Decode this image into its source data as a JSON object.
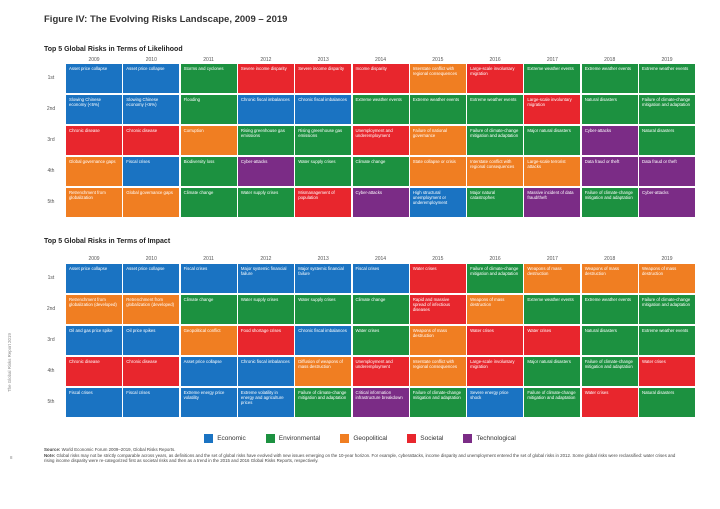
{
  "figure": {
    "label": "Figure IV:",
    "title": "The Evolving Risks Landscape, 2009 – 2019"
  },
  "years": [
    "2009",
    "2010",
    "2011",
    "2012",
    "2013",
    "2014",
    "2015",
    "2016",
    "2017",
    "2018",
    "2019"
  ],
  "ranks": [
    "1st",
    "2nd",
    "3rd",
    "4th",
    "5th"
  ],
  "likelihood": {
    "title": "Top 5 Global Risks in Terms of Likelihood",
    "grid": [
      [
        {
          "label": "Asset price collapse",
          "cat": "economic"
        },
        {
          "label": "Slowing Chinese economy (<6%)",
          "cat": "economic"
        },
        {
          "label": "Chronic disease",
          "cat": "societal"
        },
        {
          "label": "Global governance gaps",
          "cat": "geopolitical"
        },
        {
          "label": "Retrenchment from globalization",
          "cat": "geopolitical"
        }
      ],
      [
        {
          "label": "Asset price collapse",
          "cat": "economic"
        },
        {
          "label": "Slowing Chinese economy (<6%)",
          "cat": "economic"
        },
        {
          "label": "Chronic disease",
          "cat": "societal"
        },
        {
          "label": "Fiscal crises",
          "cat": "economic"
        },
        {
          "label": "Global governance gaps",
          "cat": "geopolitical"
        }
      ],
      [
        {
          "label": "Storms and cyclones",
          "cat": "environmental"
        },
        {
          "label": "Flooding",
          "cat": "environmental"
        },
        {
          "label": "Corruption",
          "cat": "geopolitical"
        },
        {
          "label": "Biodiversity loss",
          "cat": "environmental"
        },
        {
          "label": "Climate change",
          "cat": "environmental"
        }
      ],
      [
        {
          "label": "Severe income disparity",
          "cat": "societal"
        },
        {
          "label": "Chronic fiscal imbalances",
          "cat": "economic"
        },
        {
          "label": "Rising greenhouse gas emissions",
          "cat": "environmental"
        },
        {
          "label": "Cyber-attacks",
          "cat": "technological"
        },
        {
          "label": "Water supply crises",
          "cat": "environmental"
        }
      ],
      [
        {
          "label": "Severe income disparity",
          "cat": "societal"
        },
        {
          "label": "Chronic fiscal imbalances",
          "cat": "economic"
        },
        {
          "label": "Rising greenhouse gas emissions",
          "cat": "environmental"
        },
        {
          "label": "Water supply crises",
          "cat": "environmental"
        },
        {
          "label": "Mismanagement of population",
          "cat": "societal"
        }
      ],
      [
        {
          "label": "Income disparity",
          "cat": "societal"
        },
        {
          "label": "Extreme weather events",
          "cat": "environmental"
        },
        {
          "label": "Unemployment and underemployment",
          "cat": "societal"
        },
        {
          "label": "Climate change",
          "cat": "environmental"
        },
        {
          "label": "Cyber-attacks",
          "cat": "technological"
        }
      ],
      [
        {
          "label": "Interstate conflict with regional consequences",
          "cat": "geopolitical"
        },
        {
          "label": "Extreme weather events",
          "cat": "environmental"
        },
        {
          "label": "Failure of national governance",
          "cat": "geopolitical"
        },
        {
          "label": "State collapse or crisis",
          "cat": "geopolitical"
        },
        {
          "label": "High structural unemployment or underemployment",
          "cat": "economic"
        }
      ],
      [
        {
          "label": "Large-scale involuntary migration",
          "cat": "societal"
        },
        {
          "label": "Extreme weather events",
          "cat": "environmental"
        },
        {
          "label": "Failure of climate-change mitigation and adaptation",
          "cat": "environmental"
        },
        {
          "label": "Interstate conflict with regional consequences",
          "cat": "geopolitical"
        },
        {
          "label": "Major natural catastrophes",
          "cat": "environmental"
        }
      ],
      [
        {
          "label": "Extreme weather events",
          "cat": "environmental"
        },
        {
          "label": "Large-scale involuntary migration",
          "cat": "societal"
        },
        {
          "label": "Major natural disasters",
          "cat": "environmental"
        },
        {
          "label": "Large-scale terrorist attacks",
          "cat": "geopolitical"
        },
        {
          "label": "Massive incident of data fraud/theft",
          "cat": "technological"
        }
      ],
      [
        {
          "label": "Extreme weather events",
          "cat": "environmental"
        },
        {
          "label": "Natural disasters",
          "cat": "environmental"
        },
        {
          "label": "Cyber-attacks",
          "cat": "technological"
        },
        {
          "label": "Data fraud or theft",
          "cat": "technological"
        },
        {
          "label": "Failure of climate-change mitigation and adaptation",
          "cat": "environmental"
        }
      ],
      [
        {
          "label": "Extreme weather events",
          "cat": "environmental"
        },
        {
          "label": "Failure of climate-change mitigation and adaptation",
          "cat": "environmental"
        },
        {
          "label": "Natural disasters",
          "cat": "environmental"
        },
        {
          "label": "Data fraud or theft",
          "cat": "technological"
        },
        {
          "label": "Cyber-attacks",
          "cat": "technological"
        }
      ]
    ]
  },
  "impact": {
    "title": "Top 5 Global Risks in Terms of Impact",
    "grid": [
      [
        {
          "label": "Asset price collapse",
          "cat": "economic"
        },
        {
          "label": "Retrenchment from globalization (developed)",
          "cat": "geopolitical"
        },
        {
          "label": "Oil and gas price spike",
          "cat": "economic"
        },
        {
          "label": "Chronic disease",
          "cat": "societal"
        },
        {
          "label": "Fiscal crises",
          "cat": "economic"
        }
      ],
      [
        {
          "label": "Asset price collapse",
          "cat": "economic"
        },
        {
          "label": "Retrenchment from globalization (developed)",
          "cat": "geopolitical"
        },
        {
          "label": "Oil price spikes",
          "cat": "economic"
        },
        {
          "label": "Chronic disease",
          "cat": "societal"
        },
        {
          "label": "Fiscal crises",
          "cat": "economic"
        }
      ],
      [
        {
          "label": "Fiscal crises",
          "cat": "economic"
        },
        {
          "label": "Climate change",
          "cat": "environmental"
        },
        {
          "label": "Geopolitical conflict",
          "cat": "geopolitical"
        },
        {
          "label": "Asset price collapse",
          "cat": "economic"
        },
        {
          "label": "Extreme energy price volatility",
          "cat": "economic"
        }
      ],
      [
        {
          "label": "Major systemic financial failure",
          "cat": "economic"
        },
        {
          "label": "Water supply crises",
          "cat": "environmental"
        },
        {
          "label": "Food shortage crises",
          "cat": "societal"
        },
        {
          "label": "Chronic fiscal imbalances",
          "cat": "economic"
        },
        {
          "label": "Extreme volatility in energy and agriculture prices",
          "cat": "economic"
        }
      ],
      [
        {
          "label": "Major systemic financial failure",
          "cat": "economic"
        },
        {
          "label": "Water supply crises",
          "cat": "environmental"
        },
        {
          "label": "Chronic fiscal imbalances",
          "cat": "economic"
        },
        {
          "label": "Diffusion of weapons of mass destruction",
          "cat": "geopolitical"
        },
        {
          "label": "Failure of climate-change mitigation and adaptation",
          "cat": "environmental"
        }
      ],
      [
        {
          "label": "Fiscal crises",
          "cat": "economic"
        },
        {
          "label": "Climate change",
          "cat": "environmental"
        },
        {
          "label": "Water crises",
          "cat": "environmental"
        },
        {
          "label": "Unemployment and underemployment",
          "cat": "societal"
        },
        {
          "label": "Critical information infrastructure breakdown",
          "cat": "technological"
        }
      ],
      [
        {
          "label": "Water crises",
          "cat": "societal"
        },
        {
          "label": "Rapid and massive spread of infectious diseases",
          "cat": "societal"
        },
        {
          "label": "Weapons of mass destruction",
          "cat": "geopolitical"
        },
        {
          "label": "Interstate conflict with regional consequences",
          "cat": "geopolitical"
        },
        {
          "label": "Failure of climate-change mitigation and adaptation",
          "cat": "environmental"
        }
      ],
      [
        {
          "label": "Failure of climate-change mitigation and adaptation",
          "cat": "environmental"
        },
        {
          "label": "Weapons of mass destruction",
          "cat": "geopolitical"
        },
        {
          "label": "Water crises",
          "cat": "societal"
        },
        {
          "label": "Large-scale involuntary migration",
          "cat": "societal"
        },
        {
          "label": "Severe energy price shock",
          "cat": "economic"
        }
      ],
      [
        {
          "label": "Weapons of mass destruction",
          "cat": "geopolitical"
        },
        {
          "label": "Extreme weather events",
          "cat": "environmental"
        },
        {
          "label": "Water crises",
          "cat": "societal"
        },
        {
          "label": "Major natural disasters",
          "cat": "environmental"
        },
        {
          "label": "Failure of climate-change mitigation and adaptation",
          "cat": "environmental"
        }
      ],
      [
        {
          "label": "Weapons of mass destruction",
          "cat": "geopolitical"
        },
        {
          "label": "Extreme weather events",
          "cat": "environmental"
        },
        {
          "label": "Natural disasters",
          "cat": "environmental"
        },
        {
          "label": "Failure of climate-change mitigation and adaptation",
          "cat": "environmental"
        },
        {
          "label": "Water crises",
          "cat": "societal"
        }
      ],
      [
        {
          "label": "Weapons of mass destruction",
          "cat": "geopolitical"
        },
        {
          "label": "Failure of climate-change mitigation and adaptation",
          "cat": "environmental"
        },
        {
          "label": "Extreme weather events",
          "cat": "environmental"
        },
        {
          "label": "Water crises",
          "cat": "societal"
        },
        {
          "label": "Natural disasters",
          "cat": "environmental"
        }
      ]
    ]
  },
  "legend": [
    {
      "key": "economic",
      "label": "Economic",
      "color": "#1a73c2"
    },
    {
      "key": "environmental",
      "label": "Environmental",
      "color": "#1c9140"
    },
    {
      "key": "geopolitical",
      "label": "Geopolitical",
      "color": "#f07e22"
    },
    {
      "key": "societal",
      "label": "Societal",
      "color": "#e8262d"
    },
    {
      "key": "technological",
      "label": "Technological",
      "color": "#7b2c86"
    }
  ],
  "source": {
    "label": "Source:",
    "text": "World Economic Forum 2009–2019, Global Risks Reports."
  },
  "note": {
    "label": "Note:",
    "text": "Global risks may not be strictly comparable across years, as definitions and the set of global risks have evolved with new issues emerging on the 10-year horizon. For example, cyberattacks, income disparity and unemployment entered the set of global risks in 2012. Some global risks were reclassified: water crises and rising income disparity were re-categorized first as societal risks and then as a trend in the 2015 and 2016 Global Risks Reports, respectively."
  },
  "side_label": "The Global Risks Report 2019",
  "page_number": "8"
}
